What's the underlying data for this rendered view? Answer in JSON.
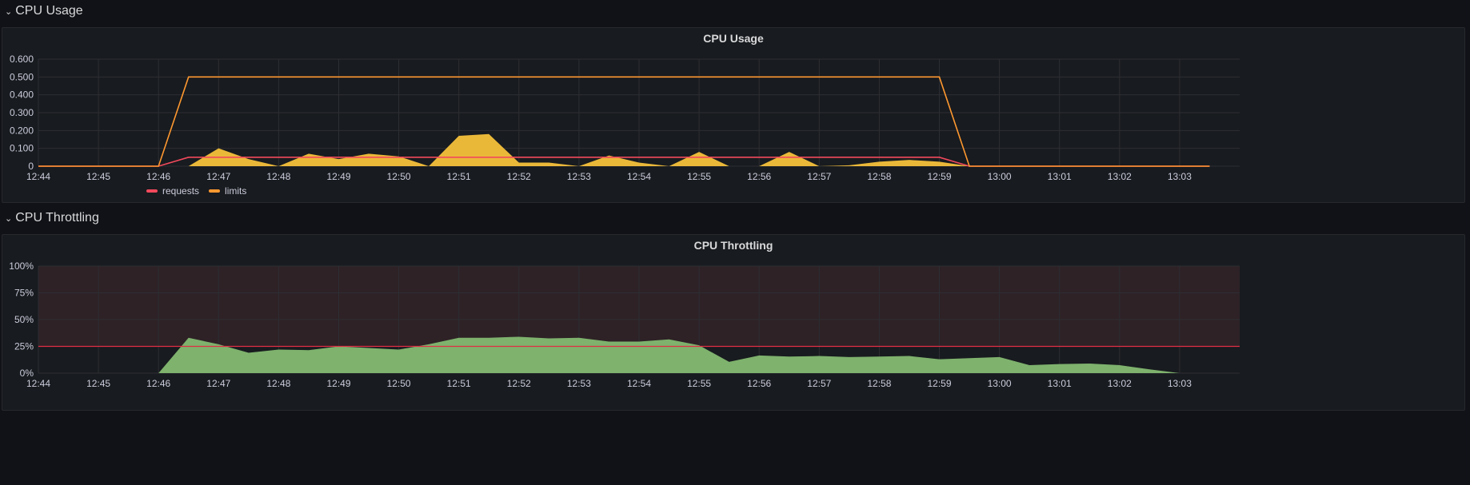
{
  "rows": [
    {
      "title": "CPU Usage"
    },
    {
      "title": "CPU Throttling"
    }
  ],
  "colors": {
    "requests": "#f2495c",
    "limits": "#ff9830",
    "usage_fill": "#eab839",
    "throttle_fill": "#7eb26d",
    "threshold": "#e02f44",
    "threshold_band": "#2e2226",
    "grid": "#2c2e33",
    "tick": "#ccccdc"
  },
  "chart_data": [
    {
      "type": "area",
      "title": "CPU Usage",
      "x_ticks": [
        "12:44",
        "12:45",
        "12:46",
        "12:47",
        "12:48",
        "12:49",
        "12:50",
        "12:51",
        "12:52",
        "12:53",
        "12:54",
        "12:55",
        "12:56",
        "12:57",
        "12:58",
        "12:59",
        "13:00",
        "13:01",
        "13:02",
        "13:03"
      ],
      "y_ticks": [
        "0",
        "0.100",
        "0.200",
        "0.300",
        "0.400",
        "0.500",
        "0.600"
      ],
      "ylim": [
        0,
        0.6
      ],
      "xlim": [
        0,
        20
      ],
      "grid": true,
      "legend_position": "bottom-left",
      "legend": [
        {
          "name": "requests",
          "color": "#f2495c"
        },
        {
          "name": "limits",
          "color": "#ff9830"
        }
      ],
      "series": [
        {
          "name": "requests",
          "kind": "line",
          "points": [
            [
              0,
              0
            ],
            [
              2,
              0
            ],
            [
              2.5,
              0.05
            ],
            [
              15,
              0.05
            ],
            [
              15.5,
              0
            ],
            [
              19.5,
              0
            ]
          ]
        },
        {
          "name": "limits",
          "kind": "line",
          "points": [
            [
              0,
              0
            ],
            [
              2,
              0
            ],
            [
              2.5,
              0.5
            ],
            [
              15,
              0.5
            ],
            [
              15.5,
              0
            ],
            [
              19.5,
              0
            ]
          ]
        },
        {
          "kind": "area",
          "points": [
            [
              0,
              0
            ],
            [
              2.5,
              0
            ],
            [
              3,
              0.1
            ],
            [
              3.5,
              0.04
            ],
            [
              4,
              0
            ],
            [
              4.5,
              0.07
            ],
            [
              5,
              0.04
            ],
            [
              5.5,
              0.07
            ],
            [
              6,
              0.055
            ],
            [
              6.5,
              0
            ],
            [
              7,
              0.17
            ],
            [
              7.5,
              0.18
            ],
            [
              8,
              0.02
            ],
            [
              8.5,
              0.02
            ],
            [
              9,
              0
            ],
            [
              9.5,
              0.06
            ],
            [
              10,
              0.02
            ],
            [
              10.5,
              0
            ],
            [
              11,
              0.08
            ],
            [
              11.5,
              0
            ],
            [
              12,
              0
            ],
            [
              12.5,
              0.08
            ],
            [
              13,
              0
            ],
            [
              13.5,
              0.005
            ],
            [
              14,
              0.025
            ],
            [
              14.5,
              0.035
            ],
            [
              15,
              0.025
            ],
            [
              15.5,
              0
            ],
            [
              19.5,
              0
            ]
          ]
        }
      ]
    },
    {
      "type": "area",
      "title": "CPU Throttling",
      "x_ticks": [
        "12:44",
        "12:45",
        "12:46",
        "12:47",
        "12:48",
        "12:49",
        "12:50",
        "12:51",
        "12:52",
        "12:53",
        "12:54",
        "12:55",
        "12:56",
        "12:57",
        "12:58",
        "12:59",
        "13:00",
        "13:01",
        "13:02",
        "13:03"
      ],
      "y_ticks": [
        "0%",
        "25%",
        "50%",
        "75%",
        "100%"
      ],
      "ylim": [
        0,
        100
      ],
      "xlim": [
        0,
        20
      ],
      "grid": true,
      "threshold": 25,
      "series": [
        {
          "kind": "area",
          "points": [
            [
              2,
              0
            ],
            [
              2.5,
              33
            ],
            [
              3,
              27
            ],
            [
              3.5,
              19
            ],
            [
              4,
              22
            ],
            [
              4.5,
              21.5
            ],
            [
              5,
              25
            ],
            [
              5.5,
              23.5
            ],
            [
              6,
              22
            ],
            [
              6.5,
              27
            ],
            [
              7,
              33
            ],
            [
              7.5,
              33
            ],
            [
              8,
              34
            ],
            [
              8.5,
              32.5
            ],
            [
              9,
              33
            ],
            [
              9.5,
              29.5
            ],
            [
              10,
              29.5
            ],
            [
              10.5,
              31.5
            ],
            [
              11,
              26
            ],
            [
              11.5,
              10.5
            ],
            [
              12,
              16.5
            ],
            [
              12.5,
              15.5
            ],
            [
              13,
              16
            ],
            [
              13.5,
              15
            ],
            [
              14,
              15.5
            ],
            [
              14.5,
              16
            ],
            [
              15,
              13
            ],
            [
              15.5,
              14
            ],
            [
              16,
              15
            ],
            [
              16.5,
              7.5
            ],
            [
              17,
              8.5
            ],
            [
              17.5,
              9
            ],
            [
              18,
              7.5
            ],
            [
              18.5,
              3.5
            ],
            [
              19,
              0
            ]
          ]
        }
      ]
    }
  ]
}
